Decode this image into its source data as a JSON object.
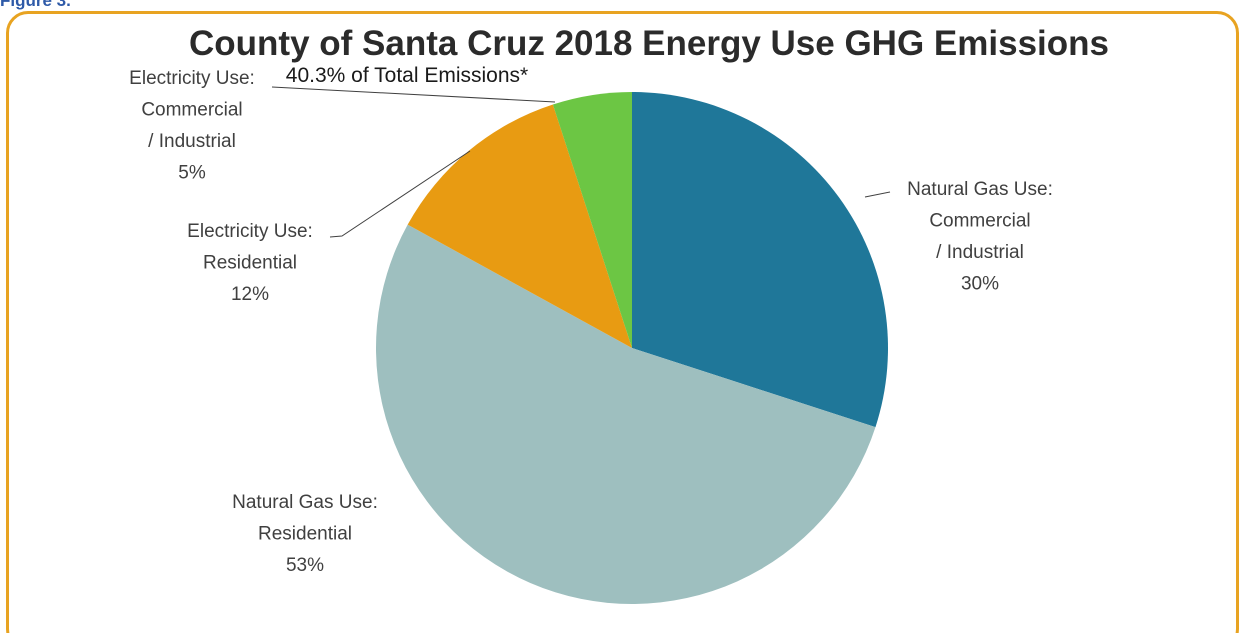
{
  "figure_label": "Figure 3.",
  "chart_data": {
    "type": "pie",
    "title": "County of Santa Cruz 2018 Energy Use GHG Emissions",
    "subtitle": "40.3% of Total Emissions*",
    "slices": [
      {
        "name": "Natural Gas Use: Commercial / Industrial",
        "label_lines": [
          "Natural Gas Use:",
          "Commercial",
          "/ Industrial"
        ],
        "value": 30,
        "value_label": "30%",
        "color": "#1f7799"
      },
      {
        "name": "Natural Gas Use: Residential",
        "label_lines": [
          "Natural Gas Use:",
          "Residential"
        ],
        "value": 53,
        "value_label": "53%",
        "color": "#9ebfbf"
      },
      {
        "name": "Electricity Use: Residential",
        "label_lines": [
          "Electricity Use:",
          "Residential"
        ],
        "value": 12,
        "value_label": "12%",
        "color": "#e89b12"
      },
      {
        "name": "Electricity Use: Commercial / Industrial",
        "label_lines": [
          "Electricity Use:",
          "Commercial",
          "/ Industrial"
        ],
        "value": 5,
        "value_label": "5%",
        "color": "#6cc644"
      }
    ],
    "start_angle_deg": 0,
    "direction": "clockwise",
    "legend": "none",
    "accent_frame_color": "#e8a321",
    "figure_label_color": "#2e5aa8"
  }
}
